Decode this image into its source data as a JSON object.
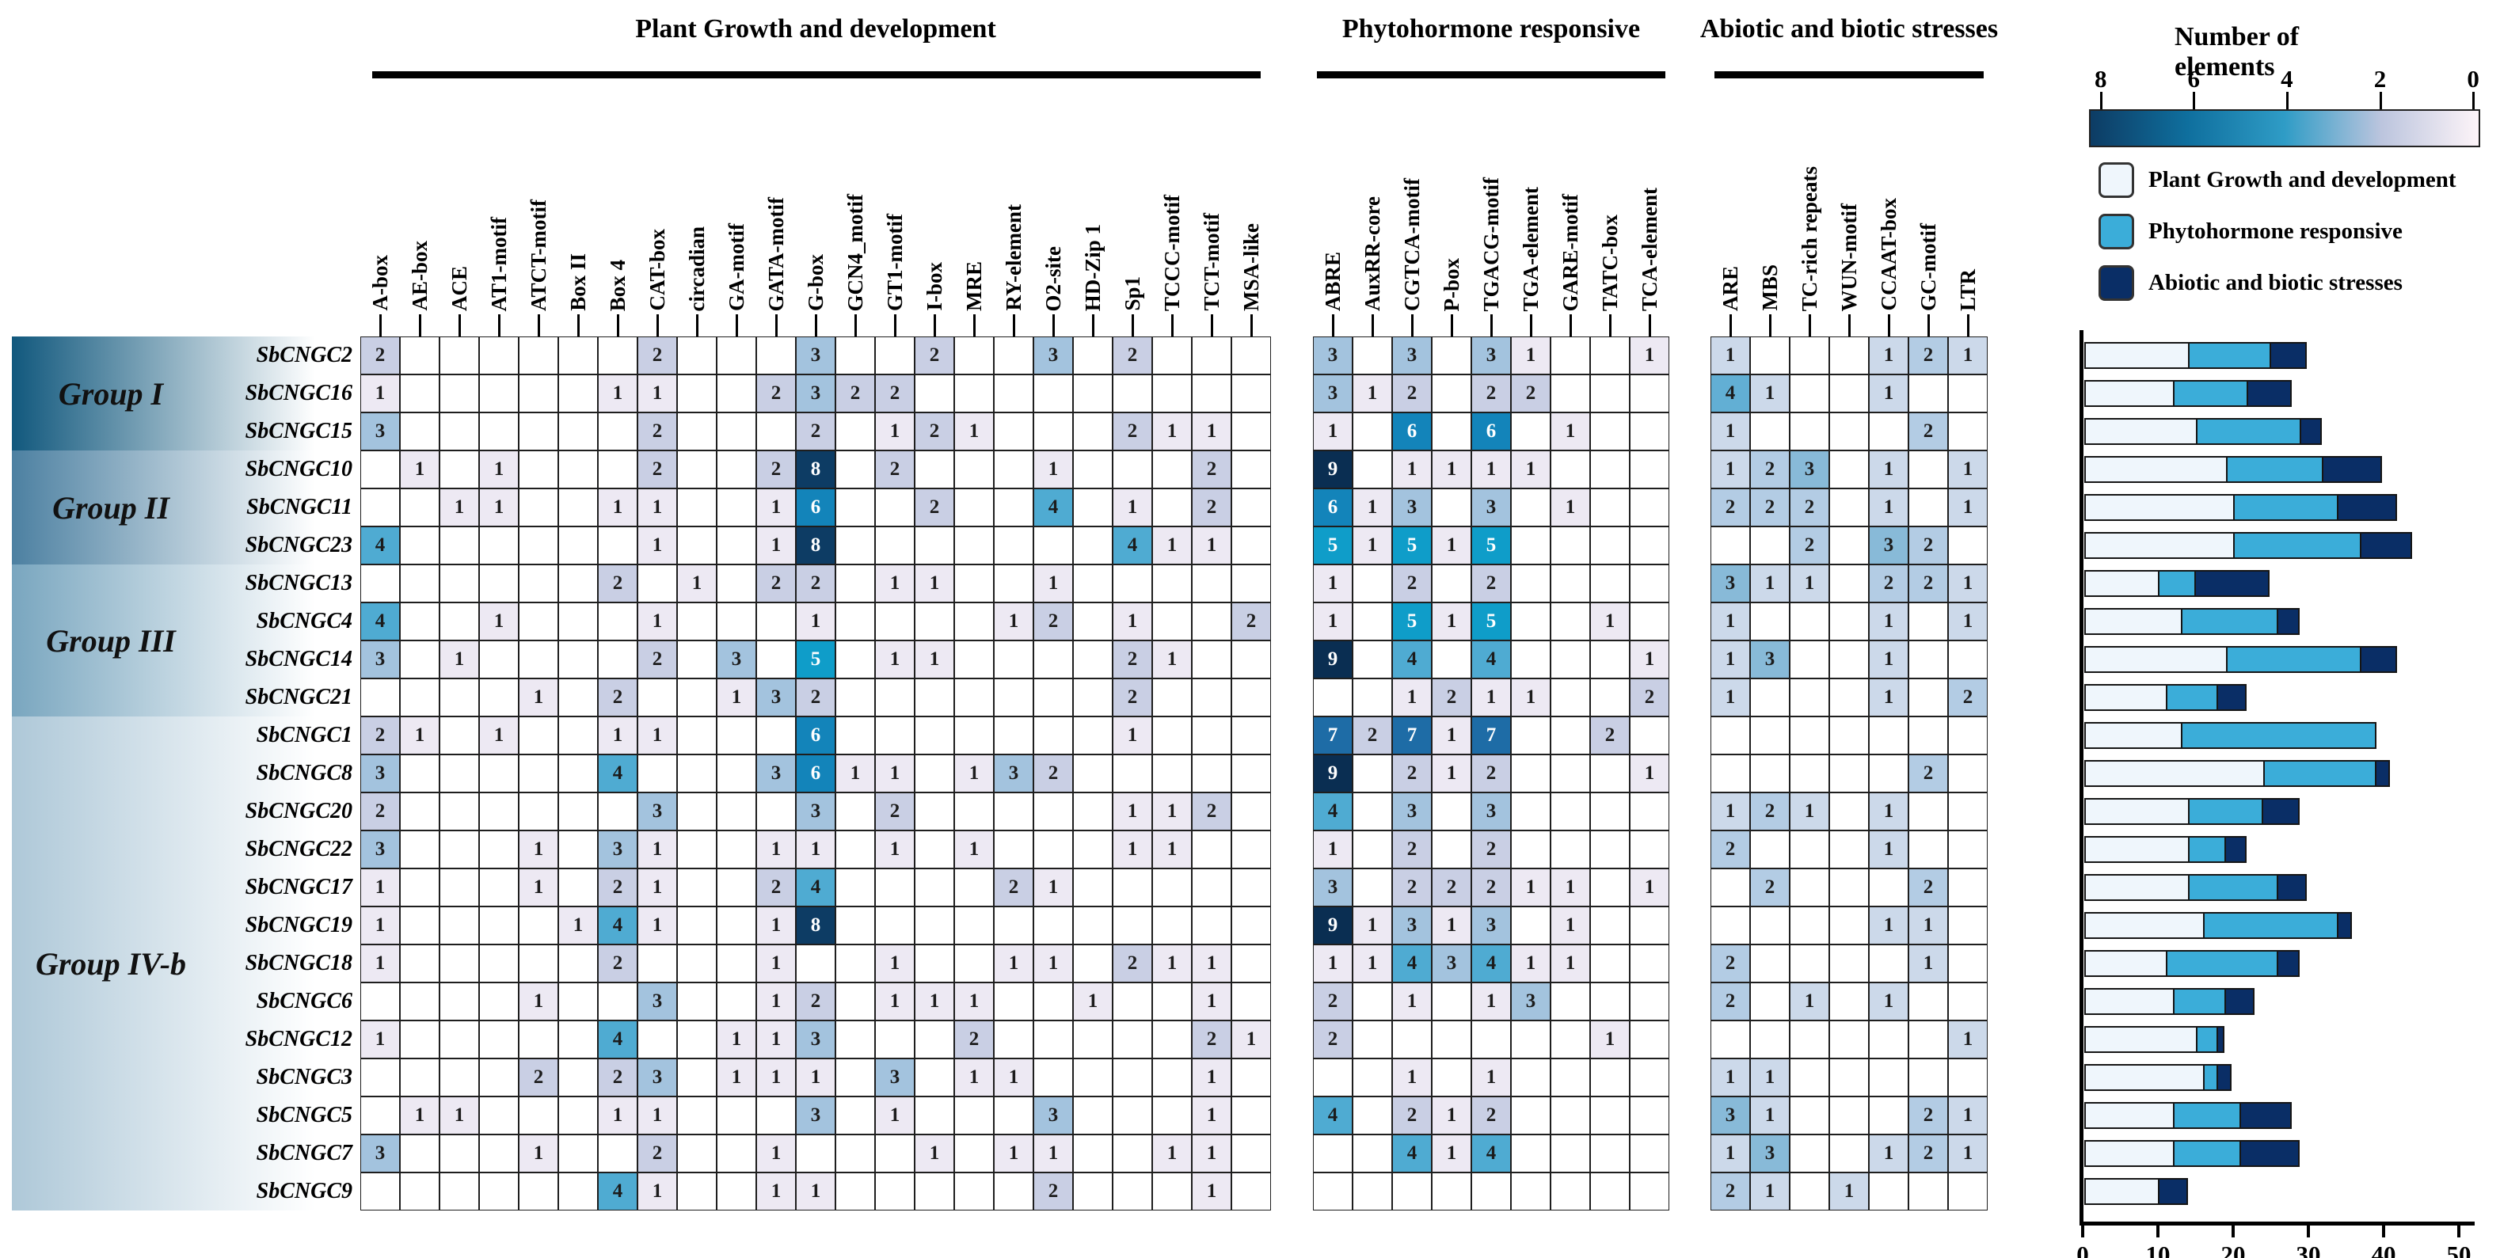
{
  "header": {
    "sections": [
      {
        "title": "Plant Growth and development",
        "columns": [
          "A-box",
          "AE-box",
          "ACE",
          "AT1-motif",
          "ATCT-motif",
          "Box II",
          "Box 4",
          "CAT-box",
          "circadian",
          "GA-motif",
          "GATA-motif",
          "G-box",
          "GCN4_motif",
          "GT1-motif",
          "I-box",
          "MRE",
          "RY-element",
          "O2-site",
          "HD-Zip 1",
          "Sp1",
          "TCCC-motif",
          "TCT-motif",
          "MSA-like"
        ]
      },
      {
        "title": "Phytohormone responsive",
        "columns": [
          "ABRE",
          "AuxRR-core",
          "CGTCA-motif",
          "P-box",
          "TGACG-motif",
          "TGA-element",
          "GARE-motif",
          "TATC-box",
          "TCA-element"
        ]
      },
      {
        "title": "Abiotic and biotic stresses",
        "columns": [
          "ARE",
          "MBS",
          "TC-rich repeats",
          "WUN-motif",
          "CCAAT-box",
          "GC-motif",
          "LTR"
        ]
      }
    ]
  },
  "groups": [
    {
      "label": "Group I",
      "genes": [
        "SbCNGC2",
        "SbCNGC16",
        "SbCNGC15"
      ],
      "color": "#11587d"
    },
    {
      "label": "Group II",
      "genes": [
        "SbCNGC10",
        "SbCNGC11",
        "SbCNGC23"
      ],
      "color": "#4c80a1"
    },
    {
      "label": "Group III",
      "genes": [
        "SbCNGC13",
        "SbCNGC4",
        "SbCNGC14",
        "SbCNGC21"
      ],
      "color": "#79a6bf"
    },
    {
      "label": "Group IV-b",
      "genes": [
        "SbCNGC1",
        "SbCNGC8",
        "SbCNGC20",
        "SbCNGC22",
        "SbCNGC17",
        "SbCNGC19",
        "SbCNGC18",
        "SbCNGC6",
        "SbCNGC12",
        "SbCNGC3",
        "SbCNGC5",
        "SbCNGC7",
        "SbCNGC9"
      ],
      "color": "#aec8d8"
    }
  ],
  "chart_data": {
    "type": "heatmap+stacked-bar",
    "genes": [
      "SbCNGC2",
      "SbCNGC16",
      "SbCNGC15",
      "SbCNGC10",
      "SbCNGC11",
      "SbCNGC23",
      "SbCNGC13",
      "SbCNGC4",
      "SbCNGC14",
      "SbCNGC21",
      "SbCNGC1",
      "SbCNGC8",
      "SbCNGC20",
      "SbCNGC22",
      "SbCNGC17",
      "SbCNGC19",
      "SbCNGC18",
      "SbCNGC6",
      "SbCNGC12",
      "SbCNGC3",
      "SbCNGC5",
      "SbCNGC7",
      "SbCNGC9"
    ],
    "plant_growth": [
      [
        2,
        0,
        0,
        0,
        0,
        0,
        0,
        2,
        0,
        0,
        0,
        3,
        0,
        0,
        2,
        0,
        0,
        3,
        0,
        2,
        0,
        0,
        0
      ],
      [
        1,
        0,
        0,
        0,
        0,
        0,
        1,
        1,
        0,
        0,
        2,
        3,
        2,
        2,
        0,
        0,
        0,
        0,
        0,
        0,
        0,
        0,
        0
      ],
      [
        3,
        0,
        0,
        0,
        0,
        0,
        0,
        2,
        0,
        0,
        0,
        2,
        0,
        1,
        2,
        1,
        0,
        0,
        0,
        2,
        1,
        1,
        0
      ],
      [
        0,
        1,
        0,
        1,
        0,
        0,
        0,
        2,
        0,
        0,
        2,
        8,
        0,
        2,
        0,
        0,
        0,
        1,
        0,
        0,
        0,
        2,
        0
      ],
      [
        0,
        0,
        1,
        1,
        0,
        0,
        1,
        1,
        0,
        0,
        1,
        6,
        0,
        0,
        2,
        0,
        0,
        4,
        0,
        1,
        0,
        2,
        0
      ],
      [
        4,
        0,
        0,
        0,
        0,
        0,
        0,
        1,
        0,
        0,
        1,
        8,
        0,
        0,
        0,
        0,
        0,
        0,
        0,
        4,
        1,
        1,
        0
      ],
      [
        0,
        0,
        0,
        0,
        0,
        0,
        2,
        0,
        1,
        0,
        2,
        2,
        0,
        1,
        1,
        0,
        0,
        1,
        0,
        0,
        0,
        0,
        0
      ],
      [
        4,
        0,
        0,
        1,
        0,
        0,
        0,
        1,
        0,
        0,
        0,
        1,
        0,
        0,
        0,
        0,
        1,
        2,
        0,
        1,
        0,
        0,
        2
      ],
      [
        3,
        0,
        1,
        0,
        0,
        0,
        0,
        2,
        0,
        3,
        0,
        5,
        0,
        1,
        1,
        0,
        0,
        0,
        0,
        2,
        1,
        0,
        0
      ],
      [
        0,
        0,
        0,
        0,
        1,
        0,
        2,
        0,
        0,
        1,
        3,
        2,
        0,
        0,
        0,
        0,
        0,
        0,
        0,
        2,
        0,
        0,
        0
      ],
      [
        2,
        1,
        0,
        1,
        0,
        0,
        1,
        1,
        0,
        0,
        0,
        6,
        0,
        0,
        0,
        0,
        0,
        0,
        0,
        1,
        0,
        0,
        0
      ],
      [
        3,
        0,
        0,
        0,
        0,
        0,
        4,
        0,
        0,
        0,
        3,
        6,
        1,
        1,
        0,
        1,
        3,
        2,
        0,
        0,
        0,
        0,
        0
      ],
      [
        2,
        0,
        0,
        0,
        0,
        0,
        0,
        3,
        0,
        0,
        0,
        3,
        0,
        2,
        0,
        0,
        0,
        0,
        0,
        1,
        1,
        2,
        0
      ],
      [
        3,
        0,
        0,
        0,
        1,
        0,
        3,
        1,
        0,
        0,
        1,
        1,
        0,
        1,
        0,
        1,
        0,
        0,
        0,
        1,
        1,
        0,
        0
      ],
      [
        1,
        0,
        0,
        0,
        1,
        0,
        2,
        1,
        0,
        0,
        2,
        4,
        0,
        0,
        0,
        0,
        2,
        1,
        0,
        0,
        0,
        0,
        0
      ],
      [
        1,
        0,
        0,
        0,
        0,
        1,
        4,
        1,
        0,
        0,
        1,
        8,
        0,
        0,
        0,
        0,
        0,
        0,
        0,
        0,
        0,
        0,
        0
      ],
      [
        1,
        0,
        0,
        0,
        0,
        0,
        2,
        0,
        0,
        0,
        1,
        0,
        0,
        1,
        0,
        0,
        1,
        1,
        0,
        2,
        1,
        1,
        0
      ],
      [
        0,
        0,
        0,
        0,
        1,
        0,
        0,
        3,
        0,
        0,
        1,
        2,
        0,
        1,
        1,
        1,
        0,
        0,
        1,
        0,
        0,
        1,
        0
      ],
      [
        1,
        0,
        0,
        0,
        0,
        0,
        4,
        0,
        0,
        1,
        1,
        3,
        0,
        0,
        0,
        2,
        0,
        0,
        0,
        0,
        0,
        2,
        1
      ],
      [
        0,
        0,
        0,
        0,
        2,
        0,
        2,
        3,
        0,
        1,
        1,
        1,
        0,
        3,
        0,
        1,
        1,
        0,
        0,
        0,
        0,
        1,
        0
      ],
      [
        0,
        1,
        1,
        0,
        0,
        0,
        1,
        1,
        0,
        0,
        0,
        3,
        0,
        1,
        0,
        0,
        0,
        3,
        0,
        0,
        0,
        1,
        0
      ],
      [
        3,
        0,
        0,
        0,
        1,
        0,
        0,
        2,
        0,
        0,
        1,
        0,
        0,
        0,
        1,
        0,
        1,
        1,
        0,
        0,
        1,
        1,
        0
      ],
      [
        0,
        0,
        0,
        0,
        0,
        0,
        4,
        1,
        0,
        0,
        1,
        1,
        0,
        0,
        0,
        0,
        0,
        2,
        0,
        0,
        0,
        1,
        0
      ]
    ],
    "phytohormone": [
      [
        3,
        0,
        3,
        0,
        3,
        1,
        0,
        0,
        1
      ],
      [
        3,
        1,
        2,
        0,
        2,
        2,
        0,
        0,
        0
      ],
      [
        1,
        0,
        6,
        0,
        6,
        0,
        1,
        0,
        0
      ],
      [
        9,
        0,
        1,
        1,
        1,
        1,
        0,
        0,
        0
      ],
      [
        6,
        1,
        3,
        0,
        3,
        0,
        1,
        0,
        0
      ],
      [
        5,
        1,
        5,
        1,
        5,
        0,
        0,
        0,
        0
      ],
      [
        1,
        0,
        2,
        0,
        2,
        0,
        0,
        0,
        0
      ],
      [
        1,
        0,
        5,
        1,
        5,
        0,
        0,
        1,
        0
      ],
      [
        9,
        0,
        4,
        0,
        4,
        0,
        0,
        0,
        1
      ],
      [
        0,
        0,
        1,
        2,
        1,
        1,
        0,
        0,
        2
      ],
      [
        7,
        2,
        7,
        1,
        7,
        0,
        0,
        2,
        0
      ],
      [
        9,
        0,
        2,
        1,
        2,
        0,
        0,
        0,
        1
      ],
      [
        4,
        0,
        3,
        0,
        3,
        0,
        0,
        0,
        0
      ],
      [
        1,
        0,
        2,
        0,
        2,
        0,
        0,
        0,
        0
      ],
      [
        3,
        0,
        2,
        2,
        2,
        1,
        1,
        0,
        1
      ],
      [
        9,
        1,
        3,
        1,
        3,
        0,
        1,
        0,
        0
      ],
      [
        1,
        1,
        4,
        3,
        4,
        1,
        1,
        0,
        0
      ],
      [
        2,
        0,
        1,
        0,
        1,
        3,
        0,
        0,
        0
      ],
      [
        2,
        0,
        0,
        0,
        0,
        0,
        0,
        1,
        0
      ],
      [
        0,
        0,
        1,
        0,
        1,
        0,
        0,
        0,
        0
      ],
      [
        4,
        0,
        2,
        1,
        2,
        0,
        0,
        0,
        0
      ],
      [
        0,
        0,
        4,
        1,
        4,
        0,
        0,
        0,
        0
      ],
      [
        0,
        0,
        0,
        0,
        0,
        0,
        0,
        0,
        0
      ]
    ],
    "stress": [
      [
        1,
        0,
        0,
        0,
        1,
        2,
        1
      ],
      [
        4,
        1,
        0,
        0,
        1,
        0,
        0
      ],
      [
        1,
        0,
        0,
        0,
        0,
        2,
        0
      ],
      [
        1,
        2,
        3,
        0,
        1,
        0,
        1
      ],
      [
        2,
        2,
        2,
        0,
        1,
        0,
        1
      ],
      [
        0,
        0,
        2,
        0,
        3,
        2,
        0
      ],
      [
        3,
        1,
        1,
        0,
        2,
        2,
        1
      ],
      [
        1,
        0,
        0,
        0,
        1,
        0,
        1
      ],
      [
        1,
        3,
        0,
        0,
        1,
        0,
        0
      ],
      [
        1,
        0,
        0,
        0,
        1,
        0,
        2
      ],
      [
        0,
        0,
        0,
        0,
        0,
        0,
        0
      ],
      [
        0,
        0,
        0,
        0,
        0,
        2,
        0
      ],
      [
        1,
        2,
        1,
        0,
        1,
        0,
        0
      ],
      [
        2,
        0,
        0,
        0,
        1,
        0,
        0
      ],
      [
        0,
        2,
        0,
        0,
        0,
        2,
        0
      ],
      [
        0,
        0,
        0,
        0,
        1,
        1,
        0
      ],
      [
        2,
        0,
        0,
        0,
        0,
        1,
        0
      ],
      [
        2,
        0,
        1,
        0,
        1,
        0,
        0
      ],
      [
        0,
        0,
        0,
        0,
        0,
        0,
        1
      ],
      [
        1,
        1,
        0,
        0,
        0,
        0,
        0
      ],
      [
        3,
        1,
        0,
        0,
        0,
        2,
        1
      ],
      [
        1,
        3,
        0,
        0,
        1,
        2,
        1
      ],
      [
        2,
        1,
        0,
        1,
        0,
        0,
        0
      ]
    ],
    "bar_axis": {
      "xticks": [
        0,
        10,
        20,
        30,
        40,
        50
      ],
      "xlim": [
        0,
        50
      ]
    }
  },
  "legend": {
    "title": "Number of elements",
    "scale_ticks": [
      "8",
      "6",
      "4",
      "2",
      "0"
    ],
    "items": [
      {
        "label": "Plant Growth and development",
        "color": "#eff6fc"
      },
      {
        "label": "Phytohormone responsive",
        "color": "#3badd9"
      },
      {
        "label": "Abiotic and biotic stresses",
        "color": "#0a2e66"
      }
    ]
  },
  "colors": {
    "heat": {
      "0": "#ffffff",
      "1": "#ede9f3",
      "2": "#c9cfe4",
      "3": "#a3c3de",
      "4": "#4fabd2",
      "5": "#0f9dc9",
      "6": "#1384ba",
      "7": "#1e6ca6",
      "8": "#0d3c64",
      "9": "#0a2e52"
    },
    "heat_stress": {
      "1": "#ccd9ea",
      "2": "#b3cce4",
      "3": "#88bad8",
      "4": "#62afd4"
    },
    "bar_growth": "#eff6fc",
    "bar_hormone": "#3badd9",
    "bar_stress": "#0a2e66"
  }
}
